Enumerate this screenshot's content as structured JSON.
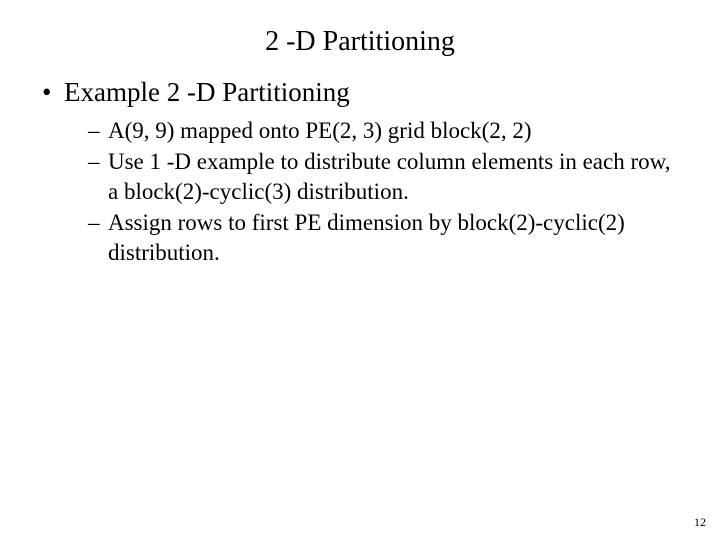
{
  "slide": {
    "title": "2 -D Partitioning",
    "bullets": [
      {
        "text": "Example 2 -D Partitioning",
        "sub": [
          "A(9, 9) mapped onto PE(2, 3) grid block(2, 2)",
          "Use 1 -D example to distribute column elements in each row, a block(2)-cyclic(3) distribution.",
          "Assign rows to first PE dimension by block(2)-cyclic(2) distribution."
        ]
      }
    ],
    "page_number": "12"
  },
  "style": {
    "background_color": "#ffffff",
    "text_color": "#000000",
    "title_fontsize": 28,
    "lvl1_fontsize": 27,
    "lvl2_fontsize": 23,
    "pagenum_fontsize": 12,
    "font_family": "Times New Roman"
  }
}
